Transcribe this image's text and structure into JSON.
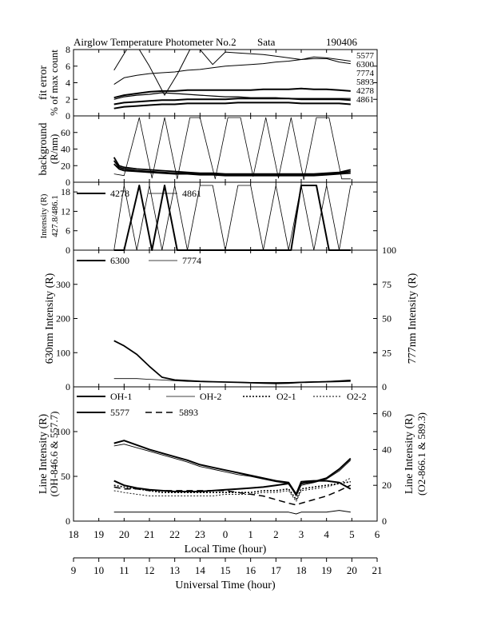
{
  "header": {
    "title": "Airglow Temperature Photometer No.2",
    "site": "Sata",
    "date": "190406"
  },
  "chart_data": [
    {
      "type": "line",
      "panel": "fit-error",
      "ylabel": [
        "fit error",
        "% of max count"
      ],
      "ylim": [
        0,
        8
      ],
      "yticks": [
        0,
        2,
        4,
        6,
        8
      ],
      "grid": false,
      "series": [
        {
          "name": "5577",
          "x": [
            19.6,
            20.0,
            20.5,
            21.0,
            21.5,
            22.0,
            22.5,
            23.0,
            23.5,
            24.0,
            24.5,
            25.0,
            25.5,
            26.0,
            26.5,
            27.0,
            27.5,
            28.0,
            28.5,
            28.95
          ],
          "values": [
            3.8,
            4.6,
            4.9,
            5.1,
            5.2,
            5.3,
            5.5,
            5.6,
            5.8,
            6.0,
            6.1,
            6.2,
            6.3,
            6.5,
            6.6,
            6.8,
            6.9,
            6.9,
            6.5,
            6.3
          ]
        },
        {
          "name": "6300",
          "x": [
            19.6,
            20.1,
            20.6,
            21.0,
            21.6,
            22.1,
            22.6,
            23.0,
            23.5,
            24.0,
            24.5,
            25.0,
            25.5,
            26.0,
            26.5,
            27.0,
            27.5,
            28.0,
            28.5,
            28.95
          ],
          "values": [
            5.5,
            8.0,
            8.0,
            6.0,
            2.5,
            5.0,
            8.0,
            8.0,
            6.2,
            7.7,
            7.6,
            7.5,
            7.4,
            7.2,
            7.0,
            6.8,
            7.1,
            7.0,
            6.8,
            6.6
          ]
        },
        {
          "name": "7774",
          "x": [
            19.6,
            20.0,
            20.5,
            21.0,
            21.5,
            22.0,
            22.5,
            23.0,
            23.5,
            24.0,
            24.5,
            25.0,
            25.5,
            26.0,
            26.5,
            27.0,
            27.5,
            28.0,
            28.5,
            28.95
          ],
          "values": [
            2.0,
            2.3,
            2.5,
            2.6,
            2.8,
            2.7,
            2.6,
            2.5,
            2.4,
            2.3,
            2.3,
            2.2,
            2.2,
            2.2,
            2.1,
            2.1,
            2.1,
            2.1,
            2.1,
            2.1
          ]
        },
        {
          "name": "5893",
          "x": [
            19.6,
            20.0,
            20.5,
            21.0,
            21.5,
            22.0,
            22.5,
            23.0,
            23.5,
            24.0,
            24.5,
            25.0,
            25.5,
            26.0,
            26.5,
            27.0,
            27.5,
            28.0,
            28.5,
            28.95
          ],
          "values": [
            2.2,
            2.5,
            2.7,
            2.9,
            3.0,
            3.0,
            3.1,
            3.1,
            3.1,
            3.1,
            3.1,
            3.1,
            3.2,
            3.2,
            3.2,
            3.3,
            3.2,
            3.2,
            3.1,
            3.0
          ]
        },
        {
          "name": "4278",
          "x": [
            19.6,
            20.0,
            20.5,
            21.0,
            21.5,
            22.0,
            22.5,
            23.0,
            23.5,
            24.0,
            24.5,
            25.0,
            25.5,
            26.0,
            26.5,
            27.0,
            27.5,
            28.0,
            28.5,
            28.95
          ],
          "values": [
            1.4,
            1.6,
            1.7,
            1.8,
            1.9,
            1.9,
            2.0,
            2.0,
            2.0,
            2.0,
            2.1,
            2.1,
            2.1,
            2.1,
            2.1,
            2.0,
            2.0,
            2.0,
            2.0,
            1.9
          ]
        },
        {
          "name": "4861",
          "x": [
            19.6,
            20.0,
            20.5,
            21.0,
            21.5,
            22.0,
            22.5,
            23.0,
            23.5,
            24.0,
            24.5,
            25.0,
            25.5,
            26.0,
            26.5,
            27.0,
            27.5,
            28.0,
            28.5,
            28.95
          ],
          "values": [
            0.9,
            1.1,
            1.2,
            1.3,
            1.4,
            1.4,
            1.5,
            1.5,
            1.5,
            1.5,
            1.6,
            1.6,
            1.6,
            1.6,
            1.6,
            1.5,
            1.5,
            1.5,
            1.5,
            1.4
          ]
        }
      ]
    },
    {
      "type": "line",
      "panel": "background",
      "ylabel": [
        "background",
        "(R/nm)"
      ],
      "ylim": [
        0,
        80
      ],
      "yticks": [
        0,
        20,
        40,
        60
      ],
      "grid": false,
      "series": [
        {
          "x": [
            19.6,
            19.8,
            20.0,
            20.5,
            21.0,
            21.5,
            22.0,
            22.5,
            23.0,
            23.5,
            24.0,
            24.5,
            25.0,
            25.5,
            26.0,
            26.5,
            27.0,
            27.5,
            28.0,
            28.5,
            28.95
          ],
          "values": [
            30,
            20,
            18,
            16,
            15,
            14,
            13,
            12,
            11,
            11,
            10,
            10,
            10,
            10,
            10,
            10,
            10,
            10,
            11,
            12,
            15
          ]
        },
        {
          "x": [
            19.6,
            19.8,
            20.0,
            20.5,
            21.0,
            21.5,
            22.0,
            22.5,
            23.0,
            23.5,
            24.0,
            24.5,
            25.0,
            25.5,
            26.0,
            26.5,
            27.0,
            27.5,
            28.0,
            28.5,
            28.95
          ],
          "values": [
            26,
            18,
            16,
            14,
            13,
            12,
            11,
            11,
            10,
            10,
            9,
            9,
            9,
            9,
            9,
            9,
            9,
            9,
            10,
            11,
            13
          ]
        },
        {
          "x": [
            19.6,
            19.8,
            20.0,
            20.5,
            21.0,
            21.5,
            22.0,
            22.5,
            23.0,
            23.5,
            24.0,
            24.5,
            25.0,
            25.5,
            26.0,
            26.5,
            27.0,
            27.5,
            28.0,
            28.5,
            28.95
          ],
          "values": [
            22,
            16,
            14,
            13,
            12,
            11,
            10,
            10,
            9,
            9,
            8,
            8,
            8,
            8,
            8,
            8,
            8,
            8,
            9,
            10,
            11
          ]
        },
        {
          "x": [
            19.6,
            20.0,
            20.6,
            21.1,
            21.6,
            22.1,
            22.6,
            23.0,
            23.6,
            24.1,
            24.6,
            25.1,
            25.6,
            26.1,
            26.6,
            27.1,
            27.6,
            28.1,
            28.6,
            28.95
          ],
          "values": [
            10,
            8,
            78,
            5,
            78,
            4,
            78,
            78,
            4,
            78,
            78,
            7,
            78,
            5,
            78,
            3,
            78,
            78,
            4,
            4
          ]
        }
      ]
    },
    {
      "type": "line",
      "panel": "intensity-427-486",
      "ylabel": [
        "Intensity (R)",
        "427.8/486.1"
      ],
      "ylim": [
        0,
        21
      ],
      "yticks": [
        0,
        6,
        12,
        18
      ],
      "grid": false,
      "series": [
        {
          "name": "4278",
          "x": [
            19.6,
            20.0,
            20.6,
            21.1,
            21.6,
            22.1,
            22.6,
            23.0,
            23.6,
            24.1,
            24.6,
            25.1,
            25.6,
            26.1,
            26.6,
            27.0,
            27.6,
            28.1,
            28.6,
            28.95
          ],
          "values": [
            0,
            0,
            20,
            0,
            20,
            0,
            0,
            0,
            0,
            0,
            0,
            0,
            0,
            0,
            0,
            20,
            20,
            0,
            0,
            0
          ]
        },
        {
          "name": "4861",
          "x": [
            19.6,
            20.0,
            20.5,
            21.0,
            21.5,
            22.0,
            22.5,
            23.0,
            23.5,
            24.0,
            24.5,
            25.0,
            25.5,
            26.0,
            26.5,
            27.0,
            27.5,
            28.0,
            28.5,
            28.95
          ],
          "values": [
            0,
            20,
            0,
            20,
            0,
            20,
            0,
            20,
            20,
            0,
            20,
            20,
            0,
            20,
            0,
            20,
            0,
            20,
            0,
            20
          ]
        }
      ]
    },
    {
      "type": "line",
      "panel": "630-777",
      "ylabel": "630nm Intensity (R)",
      "ylabel_right": "777nm Intensity (R)",
      "ylim": [
        0,
        400
      ],
      "yticks": [
        0,
        100,
        200,
        300
      ],
      "ylim_right": [
        0,
        100
      ],
      "yticks_right": [
        0,
        25,
        50,
        75,
        100
      ],
      "grid": false,
      "series": [
        {
          "name": "6300",
          "x": [
            19.6,
            20.0,
            20.5,
            21.0,
            21.5,
            22.0,
            22.5,
            23.0,
            23.5,
            24.0,
            24.5,
            25.0,
            25.5,
            26.0,
            26.5,
            27.0,
            27.5,
            28.0,
            28.5,
            28.95
          ],
          "values": [
            135,
            120,
            95,
            60,
            28,
            20,
            18,
            16,
            15,
            14,
            13,
            12,
            11,
            10,
            11,
            13,
            14,
            15,
            16,
            17
          ]
        },
        {
          "name": "7774",
          "x": [
            19.6,
            20.0,
            20.5,
            21.0,
            21.5,
            22.0,
            22.5,
            23.0,
            23.5,
            24.0,
            24.5,
            25.0,
            25.5,
            26.0,
            26.5,
            27.0,
            27.5,
            28.0,
            28.5,
            28.95
          ],
          "values": [
            6,
            6,
            6,
            5.5,
            5,
            4.5,
            4,
            3.8,
            3.6,
            3.5,
            3.4,
            3.3,
            3.2,
            3.2,
            3.3,
            3.5,
            3.8,
            4,
            4.5,
            5
          ]
        }
      ]
    },
    {
      "type": "line",
      "panel": "line-intensity",
      "ylabel": [
        "Line Intensity (R)",
        "(OH-846.6 & 557.7)"
      ],
      "ylabel_right": [
        "Line Intensity (R)",
        "(O2-866.1 & 589.3)"
      ],
      "ylim": [
        0,
        150
      ],
      "yticks": [
        0,
        50,
        100
      ],
      "ylim_right": [
        0,
        75
      ],
      "yticks_right": [
        0,
        20,
        40,
        60
      ],
      "xlabel": "Local Time (hour)",
      "xticks": [
        "18",
        "19",
        "20",
        "21",
        "22",
        "23",
        "0",
        "1",
        "2",
        "3",
        "4",
        "5",
        "6"
      ],
      "x2label": "Universal Time (hour)",
      "x2ticks": [
        "9",
        "10",
        "11",
        "12",
        "13",
        "14",
        "15",
        "16",
        "17",
        "18",
        "19",
        "20",
        "21"
      ],
      "xlim": [
        18,
        30
      ],
      "grid": false,
      "series": [
        {
          "name": "OH-1",
          "x": [
            19.6,
            20.0,
            20.5,
            21.0,
            21.5,
            22.0,
            22.5,
            23.0,
            23.5,
            24.0,
            24.5,
            25.0,
            25.5,
            26.0,
            26.5,
            26.8,
            27.0,
            27.5,
            28.0,
            28.5,
            28.95
          ],
          "values": [
            87,
            90,
            85,
            80,
            76,
            72,
            68,
            63,
            60,
            57,
            54,
            51,
            48,
            45,
            43,
            30,
            42,
            44,
            48,
            58,
            70
          ]
        },
        {
          "name": "OH-2",
          "x": [
            19.6,
            20.0,
            20.5,
            21.0,
            21.5,
            22.0,
            22.5,
            23.0,
            23.5,
            24.0,
            24.5,
            25.0,
            25.5,
            26.0,
            26.5,
            26.8,
            27.0,
            27.5,
            28.0,
            28.5,
            28.95
          ],
          "values": [
            84,
            86,
            82,
            78,
            74,
            70,
            66,
            61,
            58,
            55,
            52,
            50,
            47,
            44,
            42,
            28,
            40,
            43,
            47,
            56,
            68
          ]
        },
        {
          "name": "O2-1",
          "x": [
            19.6,
            20.0,
            20.5,
            21.0,
            21.5,
            22.0,
            22.5,
            23.0,
            23.5,
            24.0,
            24.5,
            25.0,
            25.5,
            26.0,
            26.5,
            26.8,
            27.0,
            27.5,
            28.0,
            28.5,
            28.95
          ],
          "values": [
            20,
            19,
            18,
            17,
            16,
            16,
            16,
            16,
            16,
            16,
            16,
            16,
            17,
            17,
            18,
            12,
            18,
            19,
            20,
            21,
            22
          ]
        },
        {
          "name": "O2-2",
          "x": [
            19.6,
            20.0,
            20.5,
            21.0,
            21.5,
            22.0,
            22.5,
            23.0,
            23.5,
            24.0,
            24.5,
            25.0,
            25.5,
            26.0,
            26.5,
            26.8,
            27.0,
            27.5,
            28.0,
            28.5,
            28.95
          ],
          "values": [
            17,
            16,
            15,
            14,
            14,
            14,
            14,
            14,
            14,
            15,
            15,
            15,
            16,
            16,
            17,
            11,
            17,
            18,
            19,
            21,
            24
          ]
        },
        {
          "name": "5577",
          "x": [
            19.6,
            20.0,
            20.5,
            21.0,
            21.5,
            22.0,
            22.5,
            23.0,
            23.5,
            24.0,
            24.5,
            25.0,
            25.5,
            26.0,
            26.5,
            26.8,
            27.0,
            27.5,
            28.0,
            28.5,
            28.95
          ],
          "values": [
            45,
            40,
            37,
            35,
            34,
            33,
            33,
            33,
            34,
            35,
            36,
            37,
            38,
            40,
            42,
            30,
            44,
            45,
            45,
            43,
            36
          ]
        },
        {
          "name": "5893",
          "x": [
            19.6,
            20.0,
            20.5,
            21.0,
            21.5,
            22.0,
            22.5,
            23.0,
            23.5,
            24.0,
            24.5,
            25.0,
            25.5,
            26.0,
            26.5,
            26.8,
            27.0,
            27.5,
            28.0,
            28.5,
            28.95
          ],
          "values": [
            19,
            18,
            18,
            17,
            17,
            17,
            17,
            17,
            17,
            17,
            16,
            15,
            14,
            12,
            10,
            9,
            10,
            12,
            14,
            17,
            20
          ]
        },
        {
          "x": [
            19.6,
            20.0,
            20.5,
            21.0,
            21.5,
            22.0,
            22.5,
            23.0,
            23.5,
            24.0,
            24.5,
            25.0,
            25.5,
            26.0,
            26.5,
            26.8,
            27.0,
            27.5,
            28.0,
            28.5,
            28.95
          ],
          "values": [
            5,
            5,
            5,
            5,
            5,
            5,
            5,
            5,
            5,
            5,
            5,
            5,
            5,
            5,
            5,
            4,
            5,
            5,
            5,
            6,
            5
          ]
        }
      ]
    }
  ]
}
